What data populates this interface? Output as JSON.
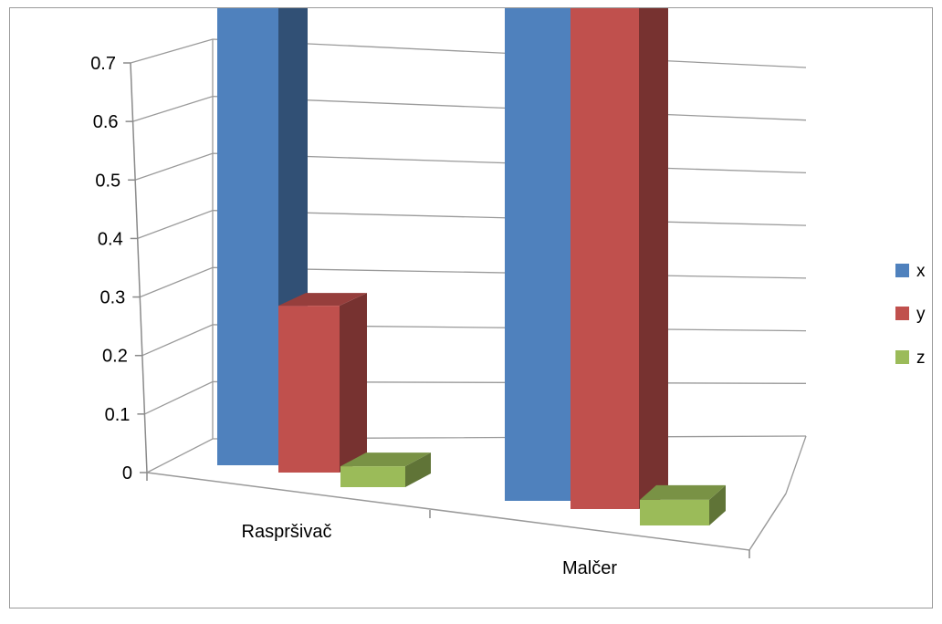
{
  "chart_data": {
    "type": "bar",
    "style": "3d-clustered-column",
    "title": "",
    "xlabel": "",
    "ylabel": "",
    "categories": [
      "Raspršivač",
      "Malčer"
    ],
    "series": [
      {
        "name": "x",
        "values": [
          0.587,
          0.587
        ],
        "color": "#4f81bd"
      },
      {
        "name": "y",
        "values": [
          0.2,
          0.69
        ],
        "color": "#c0504d"
      },
      {
        "name": "z",
        "values": [
          0.025,
          0.03
        ],
        "color": "#9bbb59"
      }
    ],
    "ylim": [
      0,
      0.7
    ],
    "yticks": [
      "0",
      "0.1",
      "0.2",
      "0.3",
      "0.4",
      "0.5",
      "0.6",
      "0.7"
    ],
    "grid": true,
    "legend": "right"
  }
}
